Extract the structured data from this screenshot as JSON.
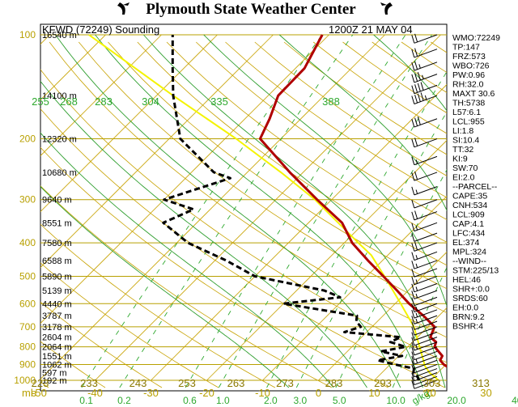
{
  "header": {
    "title": "Plymouth State Weather Center",
    "station_label": "KFWD (72249) Sounding",
    "time_label": "1200Z 21 MAY 04"
  },
  "colors": {
    "isobar": "#b8a000",
    "isotherm": "#c7a200",
    "dry_adiabat": "#c7a200",
    "moist_adiabat": "#2e9e2e",
    "mixing_ratio": "#2ea82e",
    "temperature": "#b00000",
    "dewpoint": "#000000",
    "parcel": "#f4f400",
    "wind": "#000000"
  },
  "chart_data": {
    "type": "skew-t",
    "pressure_labels": [
      "100",
      "200",
      "300",
      "400",
      "500",
      "600",
      "700",
      "800",
      "900",
      "1000"
    ],
    "height_labels": [
      "16540 m",
      "14100 m",
      "12320 m",
      "10680 m",
      "9640 m",
      "8551 m",
      "7580 m",
      "6588 m",
      "5890 m",
      "5139 m",
      "4440 m",
      "3787 m",
      "3178 m",
      "2604 m",
      "2064 m",
      "1551 m",
      "1062 m",
      "597 m",
      "192 m"
    ],
    "height_pressures": [
      100,
      150,
      200,
      250,
      300,
      350,
      400,
      450,
      500,
      550,
      600,
      650,
      700,
      750,
      800,
      850,
      900,
      950,
      1000
    ],
    "temperature_labels": [
      "-50",
      "-40",
      "-30",
      "-20",
      "-10",
      "0",
      "10",
      "20",
      "30",
      "40"
    ],
    "temperature_values": [
      -50,
      -40,
      -30,
      -20,
      -10,
      0,
      10,
      20,
      30,
      40
    ],
    "theta_labels": [
      "223",
      "233",
      "243",
      "253",
      "263",
      "273",
      "283",
      "293",
      "303",
      "313"
    ],
    "theta_values": [
      223,
      233,
      243,
      253,
      263,
      273,
      283,
      293,
      303,
      313
    ],
    "theta_e_labels": [
      "255",
      "268",
      "283",
      "304",
      "335",
      "388"
    ],
    "theta_e_values": [
      255,
      268,
      283,
      304,
      335,
      388
    ],
    "mixing_ratio_labels": [
      "0.1",
      "0.2",
      "0.6",
      "1.0",
      "2.0",
      "3.0",
      "5.0",
      "10.0",
      "20.0",
      "40.0"
    ],
    "mixing_ratio_values": [
      0.1,
      0.2,
      0.6,
      1.0,
      2.0,
      3.0,
      5.0,
      10.0,
      20.0,
      40.0
    ],
    "temp_unit": "°C",
    "mb_unit": "mb",
    "mr_unit": "g/kg",
    "temperature_profile": [
      {
        "p": 1000,
        "t": 25.5
      },
      {
        "p": 975,
        "t": 24.8
      },
      {
        "p": 950,
        "t": 23.0
      },
      {
        "p": 925,
        "t": 21.5
      },
      {
        "p": 900,
        "t": 19.6
      },
      {
        "p": 875,
        "t": 18.2
      },
      {
        "p": 850,
        "t": 17.8
      },
      {
        "p": 800,
        "t": 14.8
      },
      {
        "p": 775,
        "t": 14.2
      },
      {
        "p": 750,
        "t": 12.3
      },
      {
        "p": 700,
        "t": 11.2
      },
      {
        "p": 650,
        "t": 7.2
      },
      {
        "p": 600,
        "t": 2.5
      },
      {
        "p": 550,
        "t": -2.0
      },
      {
        "p": 500,
        "t": -7.0
      },
      {
        "p": 450,
        "t": -12.6
      },
      {
        "p": 400,
        "t": -18.6
      },
      {
        "p": 350,
        "t": -24.0
      },
      {
        "p": 300,
        "t": -32.6
      },
      {
        "p": 250,
        "t": -42.4
      },
      {
        "p": 200,
        "t": -53.7
      },
      {
        "p": 175,
        "t": -55.6
      },
      {
        "p": 150,
        "t": -58.2
      },
      {
        "p": 125,
        "t": -58.4
      },
      {
        "p": 100,
        "t": -61.2
      }
    ],
    "dewpoint_profile": [
      {
        "p": 1000,
        "t": 18.0
      },
      {
        "p": 975,
        "t": 17.0
      },
      {
        "p": 950,
        "t": 15.6
      },
      {
        "p": 925,
        "t": 15.0
      },
      {
        "p": 900,
        "t": 10.9
      },
      {
        "p": 875,
        "t": 7.0
      },
      {
        "p": 850,
        "t": 10.6
      },
      {
        "p": 825,
        "t": 6.0
      },
      {
        "p": 800,
        "t": 9.6
      },
      {
        "p": 775,
        "t": 6.0
      },
      {
        "p": 750,
        "t": 7.0
      },
      {
        "p": 725,
        "t": -4.0
      },
      {
        "p": 700,
        "t": -2.0
      },
      {
        "p": 675,
        "t": -3.8
      },
      {
        "p": 650,
        "t": -4.7
      },
      {
        "p": 600,
        "t": -20.0
      },
      {
        "p": 575,
        "t": -11.0
      },
      {
        "p": 550,
        "t": -15.0
      },
      {
        "p": 500,
        "t": -30.0
      },
      {
        "p": 450,
        "t": -38.0
      },
      {
        "p": 400,
        "t": -48.0
      },
      {
        "p": 350,
        "t": -56.0
      },
      {
        "p": 320,
        "t": -53.0
      },
      {
        "p": 300,
        "t": -60.0
      },
      {
        "p": 260,
        "t": -52.0
      },
      {
        "p": 250,
        "t": -56.0
      },
      {
        "p": 200,
        "t": -68.0
      },
      {
        "p": 150,
        "t": -77.0
      },
      {
        "p": 125,
        "t": -82.0
      },
      {
        "p": 100,
        "t": -88.0
      }
    ],
    "parcel_profile": [
      {
        "p": 1000,
        "t": 21.5
      },
      {
        "p": 950,
        "t": 18.5
      },
      {
        "p": 909,
        "t": 16.5
      },
      {
        "p": 850,
        "t": 14.2
      },
      {
        "p": 700,
        "t": 7.5
      },
      {
        "p": 600,
        "t": 1.0
      },
      {
        "p": 500,
        "t": -6.8
      },
      {
        "p": 434,
        "t": -13.0
      },
      {
        "p": 400,
        "t": -17.5
      },
      {
        "p": 300,
        "t": -33.0
      },
      {
        "p": 250,
        "t": -44.0
      },
      {
        "p": 200,
        "t": -58.0
      },
      {
        "p": 150,
        "t": -77.0
      },
      {
        "p": 100,
        "t": -103.0
      }
    ],
    "wind_profile": [
      {
        "p": 1000,
        "speed": 10
      },
      {
        "p": 975,
        "speed": 10
      },
      {
        "p": 950,
        "speed": 10
      },
      {
        "p": 925,
        "speed": 5
      },
      {
        "p": 900,
        "speed": 10
      },
      {
        "p": 875,
        "speed": 10
      },
      {
        "p": 850,
        "speed": 15
      },
      {
        "p": 825,
        "speed": 10
      },
      {
        "p": 800,
        "speed": 10
      },
      {
        "p": 775,
        "speed": 15
      },
      {
        "p": 750,
        "speed": 10
      },
      {
        "p": 725,
        "speed": 10
      },
      {
        "p": 700,
        "speed": 10
      },
      {
        "p": 675,
        "speed": 10
      },
      {
        "p": 650,
        "speed": 15
      },
      {
        "p": 625,
        "speed": 15
      },
      {
        "p": 600,
        "speed": 15
      },
      {
        "p": 575,
        "speed": 10
      },
      {
        "p": 550,
        "speed": 15
      },
      {
        "p": 525,
        "speed": 15
      },
      {
        "p": 500,
        "speed": 15
      },
      {
        "p": 475,
        "speed": 10
      },
      {
        "p": 450,
        "speed": 15
      },
      {
        "p": 425,
        "speed": 15
      },
      {
        "p": 400,
        "speed": 20
      },
      {
        "p": 375,
        "speed": 10
      },
      {
        "p": 350,
        "speed": 15
      },
      {
        "p": 325,
        "speed": 20
      },
      {
        "p": 300,
        "speed": 10
      },
      {
        "p": 275,
        "speed": 15
      },
      {
        "p": 250,
        "speed": 20
      },
      {
        "p": 225,
        "speed": 15
      },
      {
        "p": 200,
        "speed": 20
      },
      {
        "p": 175,
        "speed": 30
      },
      {
        "p": 150,
        "speed": 45
      },
      {
        "p": 140,
        "speed": 40
      },
      {
        "p": 130,
        "speed": 35
      },
      {
        "p": 120,
        "speed": 25
      },
      {
        "p": 110,
        "speed": 20
      },
      {
        "p": 100,
        "speed": 20
      }
    ]
  },
  "indices": [
    "WMO:72249",
    "TP:147",
    "FRZ:573",
    "WBO:726",
    "PW:0.96",
    "RH:32.0",
    "MAXT 30.6",
    "TH:5738",
    "L57:6.1",
    "LCL:955",
    "LI:1.8",
    "SI:10.4",
    "TT:32",
    "KI:9",
    "SW:70",
    "EI:2.0",
    "--PARCEL--",
    "CAPE:35",
    "CNH:534",
    "LCL:909",
    "CAP:4.1",
    "LFC:434",
    "EL:374",
    "MPL:324",
    "--WIND--",
    "STM:225/13",
    "HEL:46",
    "SHR+:0.0",
    "SRDS:60",
    "EH:0.0",
    "BRN:9.2",
    "BSHR:4"
  ]
}
